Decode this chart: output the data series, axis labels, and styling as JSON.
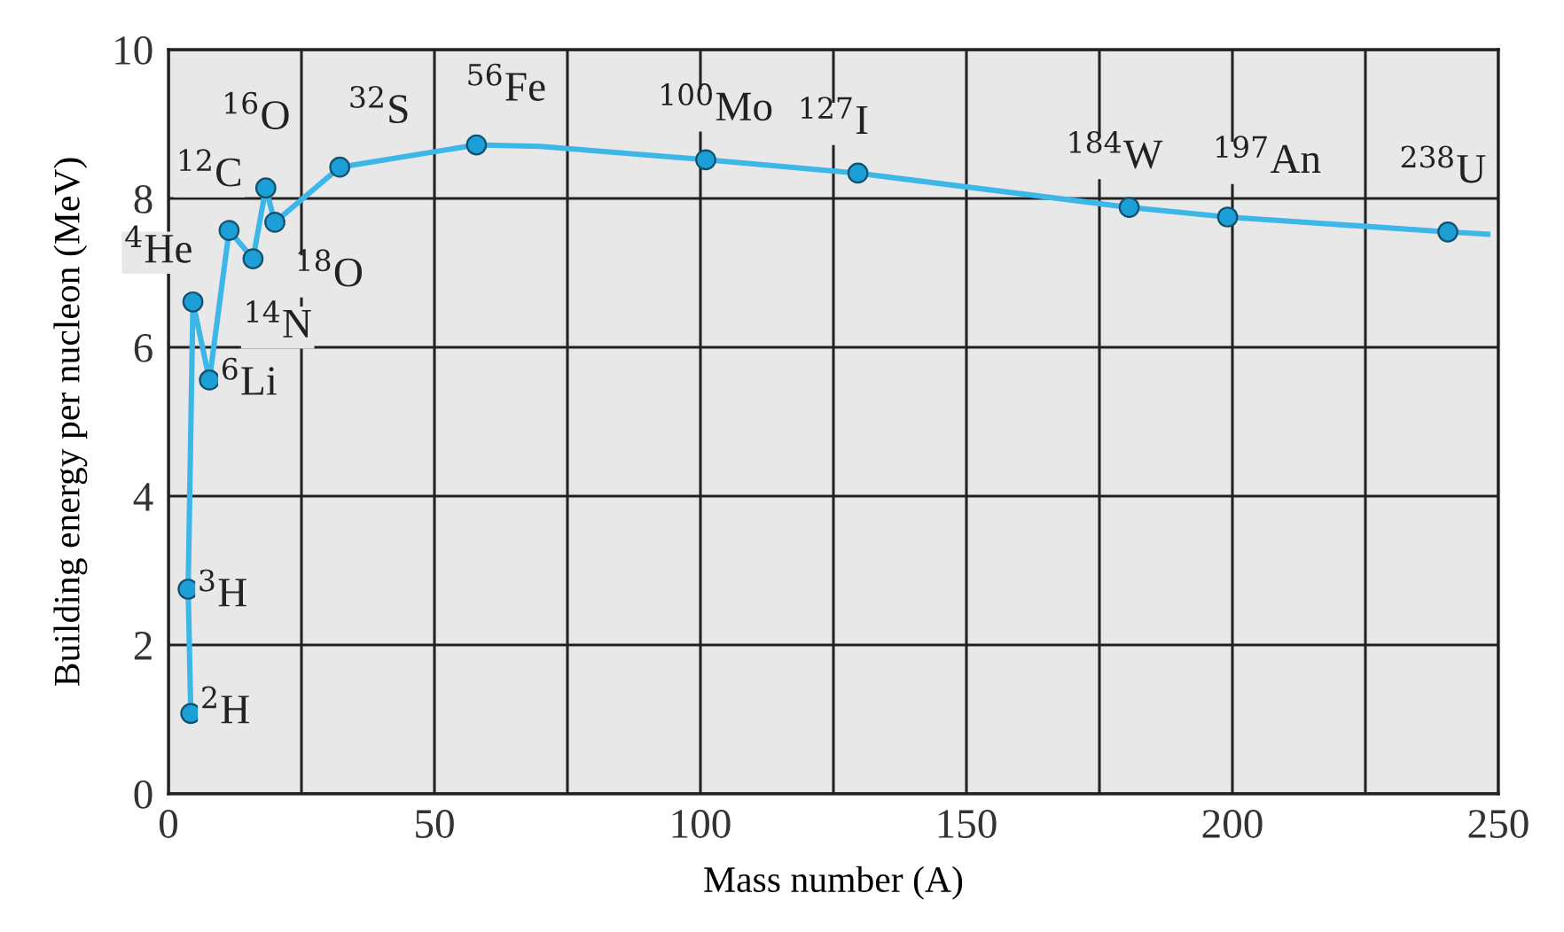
{
  "chart_data": {
    "type": "line",
    "xlabel": "Mass number (A)",
    "ylabel": "Building energy per nucleon (MeV)",
    "xlim": [
      0,
      250
    ],
    "ylim": [
      0,
      10
    ],
    "xticks": [
      0,
      {
        "value": 25,
        "label": null
      },
      50,
      {
        "value": 75,
        "label": null
      },
      100,
      {
        "value": 125,
        "label": null
      },
      150,
      {
        "value": 175,
        "label": null
      },
      200,
      {
        "value": 225,
        "label": null
      },
      250
    ],
    "yticks": [
      0,
      2,
      4,
      6,
      8,
      10
    ],
    "grid": true,
    "legend": false,
    "series": [
      {
        "color": "#3db7e8",
        "marker": "none",
        "x": [
          4.2,
          3.7,
          4.6,
          7.7,
          11.4,
          15.9,
          18.3,
          20,
          32.2,
          57.9,
          70,
          101,
          129.6,
          180.6,
          199.1,
          240.5,
          248
        ],
        "values": [
          1.08,
          2.75,
          6.61,
          5.56,
          7.57,
          7.19,
          8.14,
          7.68,
          8.42,
          8.72,
          8.7,
          8.52,
          8.34,
          7.88,
          7.75,
          7.55,
          7.52
        ]
      },
      {
        "type": "scatter",
        "color": "#1b9fd6",
        "marker": "circle",
        "x": [
          4.2,
          3.7,
          4.6,
          7.7,
          11.4,
          15.9,
          18.3,
          20,
          32.2,
          57.9,
          101,
          129.6,
          180.6,
          199.1,
          240.5
        ],
        "values": [
          1.08,
          2.75,
          6.61,
          5.56,
          7.57,
          7.19,
          8.14,
          7.68,
          8.42,
          8.72,
          8.52,
          8.34,
          7.88,
          7.75,
          7.55
        ]
      }
    ],
    "annotations": [
      {
        "text": "$^{2}$H",
        "x": 4.2,
        "y": 1.08
      },
      {
        "text": "$^{3}$H",
        "x": 3.7,
        "y": 2.75
      },
      {
        "text": "$^{4}$He",
        "x": 4.6,
        "y": 6.61
      },
      {
        "text": "$^{6}$Li",
        "x": 7.7,
        "y": 5.56
      },
      {
        "text": "$^{12}$C",
        "x": 11.4,
        "y": 7.57
      },
      {
        "text": "$^{14}$N",
        "x": 15.9,
        "y": 7.19
      },
      {
        "text": "$^{16}$O",
        "x": 18.3,
        "y": 8.14
      },
      {
        "text": "$^{18}$O",
        "x": 20,
        "y": 7.68
      },
      {
        "text": "$^{32}$S",
        "x": 32.2,
        "y": 8.42
      },
      {
        "text": "$^{56}$Fe",
        "x": 57.9,
        "y": 8.72
      },
      {
        "text": "$^{100}$Mo",
        "x": 101,
        "y": 8.52
      },
      {
        "text": "$^{127}$I",
        "x": 129.6,
        "y": 8.34
      },
      {
        "text": "$^{184}$W",
        "x": 180.6,
        "y": 7.88
      },
      {
        "text": "$^{197}$An",
        "x": 199.1,
        "y": 7.75
      },
      {
        "text": "$^{238}$U",
        "x": 240.5,
        "y": 7.55
      }
    ]
  }
}
